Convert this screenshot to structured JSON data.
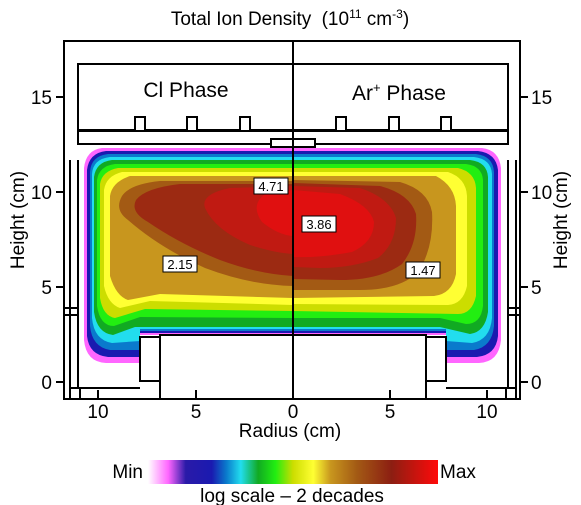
{
  "title": "Total Ion Density",
  "title_units": {
    "prefix": "(10",
    "sup1": "11",
    "mid": " cm",
    "sup2": "-3",
    "suffix": ")"
  },
  "x_axis": {
    "label": "Radius (cm)",
    "ticks": [
      "10",
      "5",
      "0",
      "5",
      "10"
    ]
  },
  "y_axis_left": {
    "label": "Height (cm)",
    "ticks": [
      "0",
      "5",
      "10",
      "15"
    ]
  },
  "y_axis_right": {
    "label": "Height (cm)",
    "ticks": [
      "0",
      "5",
      "10",
      "15"
    ]
  },
  "panels": {
    "left": {
      "label": "Cl Phase"
    },
    "right": {
      "label_base": "Ar",
      "label_sup": "+",
      "label_rest": " Phase"
    }
  },
  "contour_labels": {
    "left_peak": "4.71",
    "left_mid": "2.15",
    "right_peak": "3.86",
    "right_mid": "1.47"
  },
  "colorbar": {
    "min_label": "Min",
    "max_label": "Max",
    "caption": "log scale – 2 decades",
    "colors": [
      "#ffffff",
      "#ff66ff",
      "#1a1ab0",
      "#0a7acc",
      "#22ddee",
      "#11aa22",
      "#22ee11",
      "#ccdd00",
      "#ffff33",
      "#c8961e",
      "#a35a14",
      "#9c2a12",
      "#e01010"
    ]
  }
}
